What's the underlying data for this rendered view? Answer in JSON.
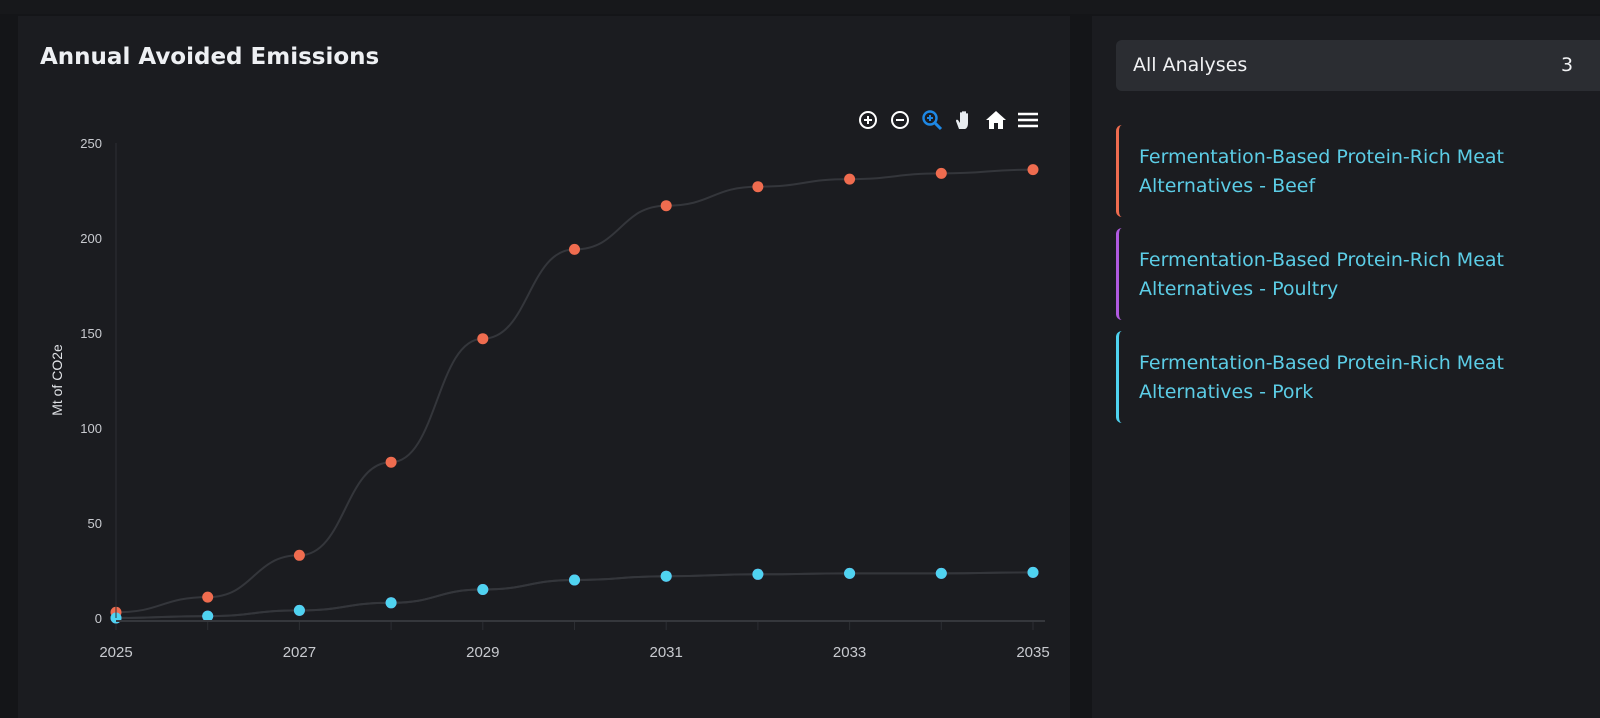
{
  "panel": {
    "title": "Annual Avoided Emissions"
  },
  "toolbar": {
    "icons": [
      "zoom-in-icon",
      "zoom-out-icon",
      "selection-zoom-icon",
      "pan-icon",
      "home-icon",
      "menu-icon"
    ],
    "active_color": "#1e88e5"
  },
  "sidebar": {
    "dropdown_value": "All Analyses",
    "dropdown_count": "3",
    "legend": [
      {
        "line1": "Fermentation-Based Protein-Rich Meat",
        "line2": "Alternatives - Beef",
        "color": "#ef6c4f"
      },
      {
        "line1": "Fermentation-Based Protein-Rich Meat",
        "line2": "Alternatives - Poultry",
        "color": "#b05ae0"
      },
      {
        "line1": "Fermentation-Based Protein-Rich Meat",
        "line2": "Alternatives - Pork",
        "color": "#4fd3f0"
      }
    ]
  },
  "chart_data": {
    "type": "line",
    "title": "Annual Avoided Emissions",
    "xlabel": "",
    "ylabel": "Mt of CO2e",
    "x": [
      2025,
      2026,
      2027,
      2028,
      2029,
      2030,
      2031,
      2032,
      2033,
      2034,
      2035
    ],
    "x_tick_labels": [
      "2025",
      "2027",
      "2029",
      "2031",
      "2033",
      "2035"
    ],
    "y_tick_labels": [
      "0",
      "50",
      "100",
      "150",
      "200",
      "250"
    ],
    "xlim": [
      2025,
      2035
    ],
    "ylim": [
      0,
      250
    ],
    "grid": false,
    "series": [
      {
        "name": "Fermentation-Based Protein-Rich Meat Alternatives - Beef",
        "color": "#ef6c4f",
        "values": [
          3,
          11,
          33,
          82,
          147,
          194,
          217,
          227,
          231,
          234,
          236
        ]
      },
      {
        "name": "Fermentation-Based Protein-Rich Meat Alternatives - Poultry",
        "color": "#b05ae0",
        "values": [
          0,
          1,
          4,
          8,
          15,
          20,
          22,
          23,
          23.5,
          23.5,
          24
        ]
      },
      {
        "name": "Fermentation-Based Protein-Rich Meat Alternatives - Pork",
        "color": "#4fd3f0",
        "values": [
          0,
          1,
          4,
          8,
          15,
          20,
          22,
          23,
          23.5,
          23.5,
          24
        ]
      }
    ]
  }
}
